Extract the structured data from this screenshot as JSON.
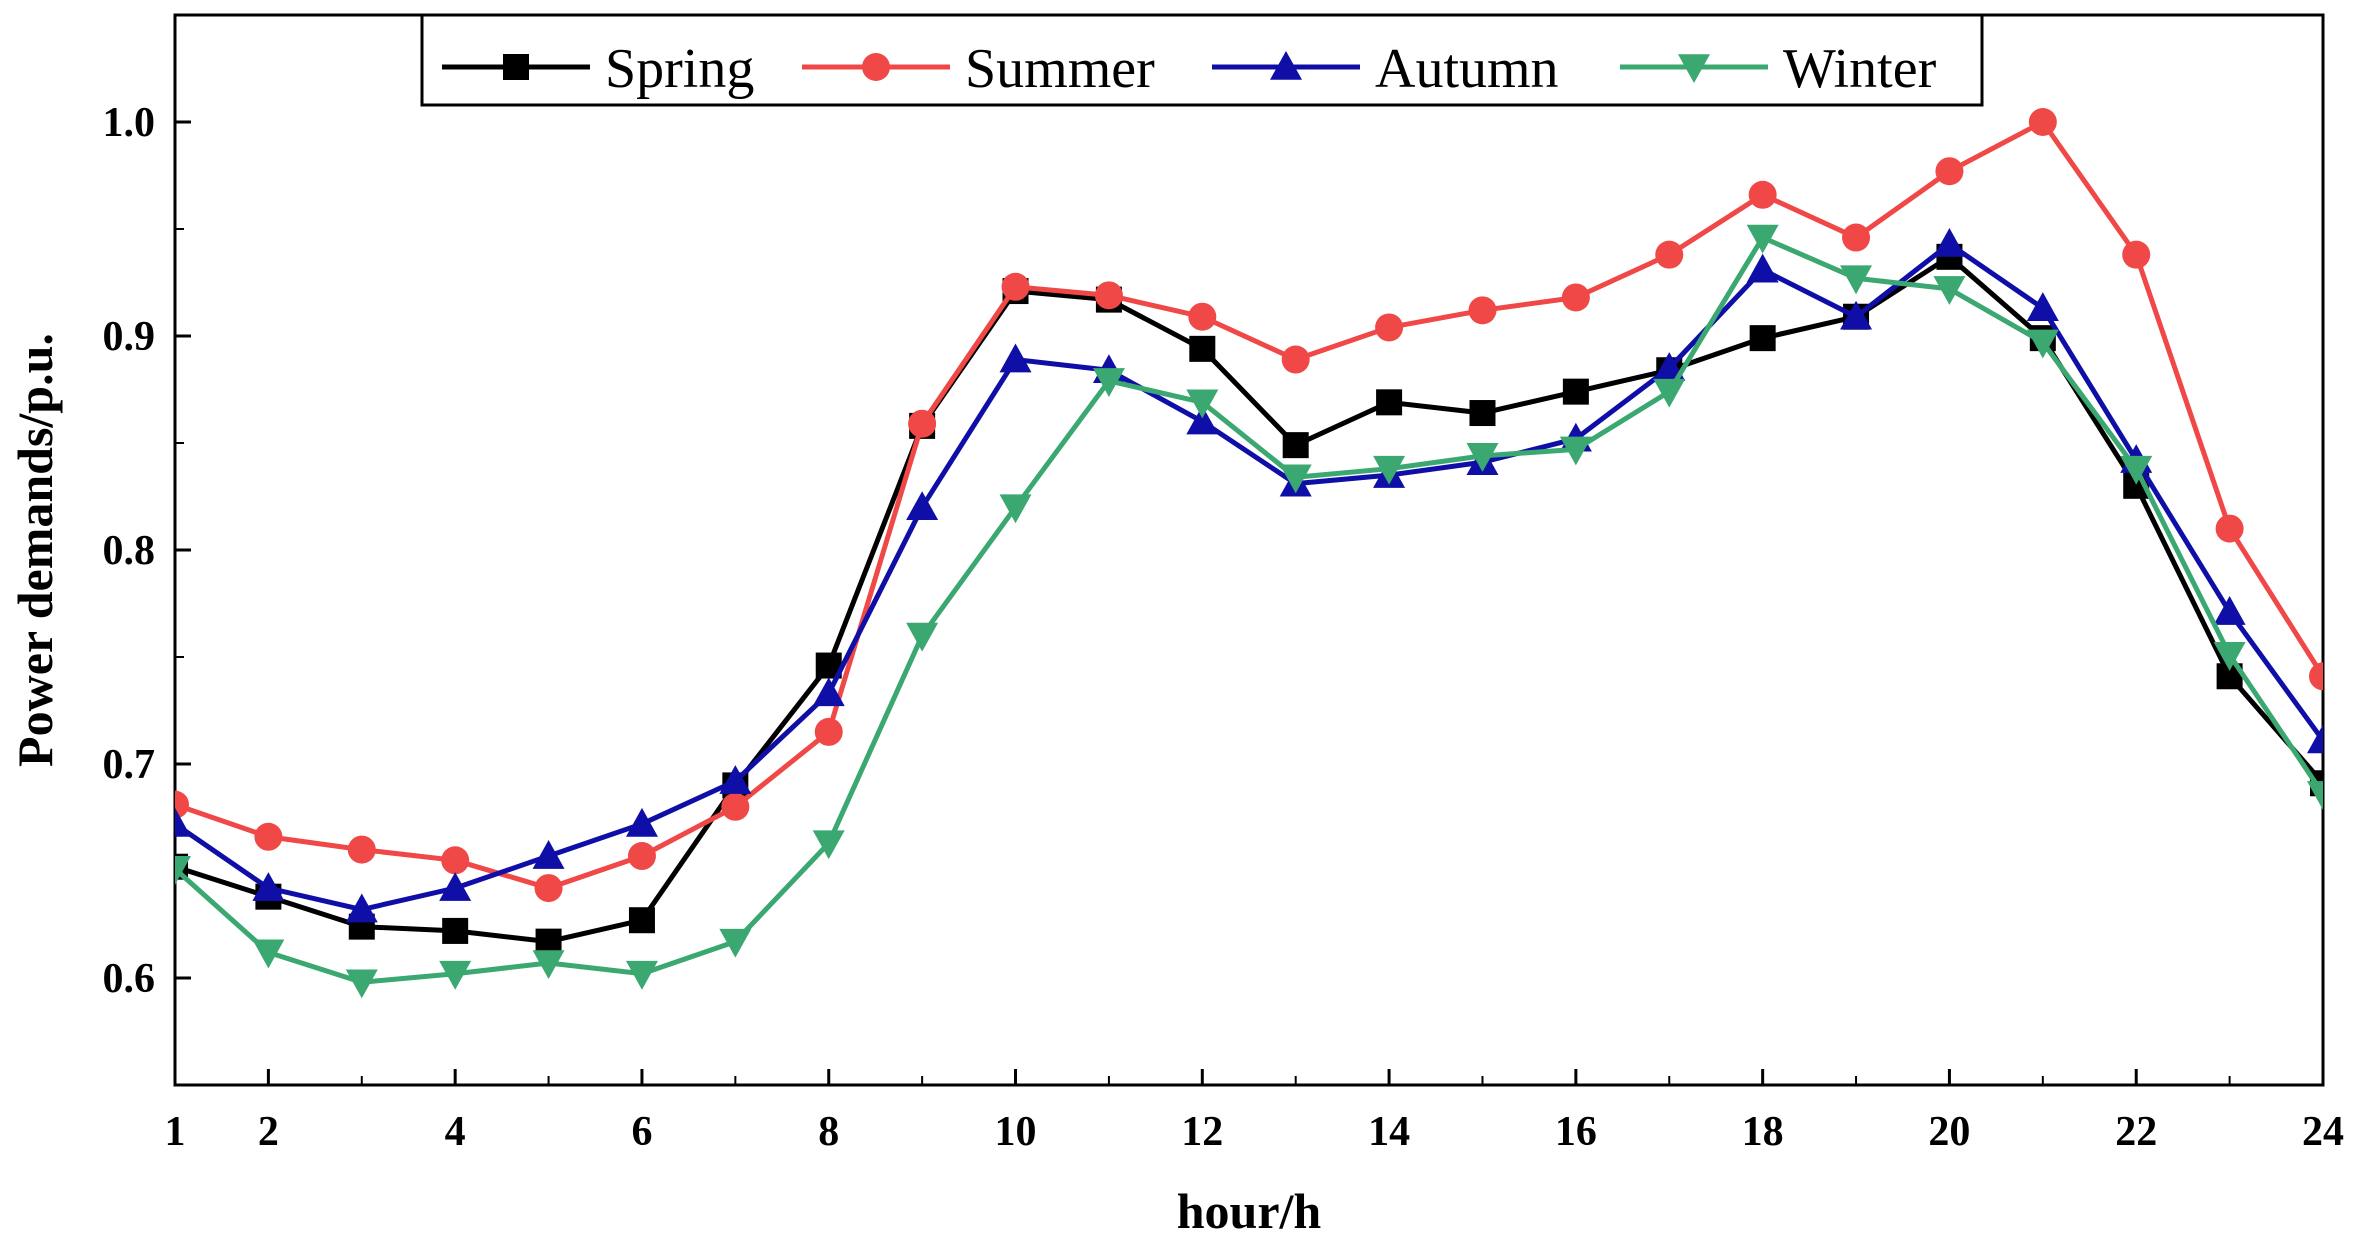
{
  "chart_data": {
    "type": "line",
    "title": "",
    "xlabel": "hour/h",
    "ylabel": "Power demands/p.u.",
    "xlim": [
      1,
      24
    ],
    "ylim": [
      0.55,
      1.05
    ],
    "xticks": [
      1,
      2,
      4,
      6,
      8,
      10,
      12,
      14,
      16,
      18,
      20,
      22,
      24
    ],
    "yticks": [
      0.6,
      0.7,
      0.8,
      0.9,
      1.0
    ],
    "ytick_labels": [
      "0.6",
      "0.7",
      "0.8",
      "0.9",
      "1.0"
    ],
    "grid": false,
    "legend_position": "top-center",
    "x": [
      1,
      2,
      3,
      4,
      5,
      6,
      7,
      8,
      9,
      10,
      11,
      12,
      13,
      14,
      15,
      16,
      17,
      18,
      19,
      20,
      21,
      22,
      23,
      24
    ],
    "series": [
      {
        "name": "Spring",
        "color": "#000000",
        "marker": "square",
        "values": [
          0.652,
          0.638,
          0.624,
          0.622,
          0.617,
          0.627,
          0.69,
          0.746,
          0.858,
          0.921,
          0.917,
          0.894,
          0.849,
          0.869,
          0.864,
          0.874,
          0.884,
          0.899,
          0.909,
          0.937,
          0.899,
          0.83,
          0.741,
          0.691
        ]
      },
      {
        "name": "Summer",
        "color": "#f04747",
        "marker": "circle",
        "values": [
          0.681,
          0.666,
          0.66,
          0.655,
          0.642,
          0.657,
          0.68,
          0.715,
          0.859,
          0.923,
          0.919,
          0.909,
          0.889,
          0.904,
          0.912,
          0.918,
          0.938,
          0.966,
          0.946,
          0.977,
          1.0,
          0.938,
          0.81,
          0.741
        ]
      },
      {
        "name": "Autumn",
        "color": "#0f0fa8",
        "marker": "triangle-up",
        "values": [
          0.672,
          0.642,
          0.632,
          0.642,
          0.657,
          0.672,
          0.692,
          0.733,
          0.82,
          0.889,
          0.884,
          0.86,
          0.831,
          0.835,
          0.841,
          0.852,
          0.885,
          0.931,
          0.909,
          0.943,
          0.913,
          0.842,
          0.771,
          0.711
        ]
      },
      {
        "name": "Winter",
        "color": "#3aa870",
        "marker": "triangle-down",
        "values": [
          0.651,
          0.612,
          0.598,
          0.602,
          0.607,
          0.602,
          0.617,
          0.663,
          0.76,
          0.82,
          0.879,
          0.869,
          0.834,
          0.838,
          0.844,
          0.847,
          0.874,
          0.946,
          0.927,
          0.922,
          0.897,
          0.838,
          0.751,
          0.686
        ]
      }
    ]
  }
}
